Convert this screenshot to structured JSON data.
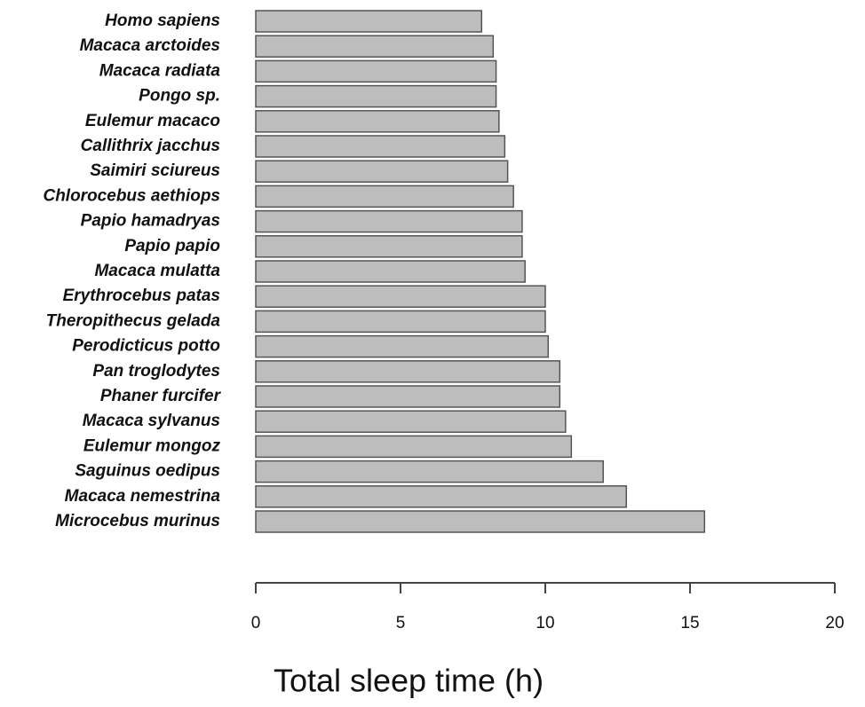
{
  "chart_data": {
    "type": "bar",
    "orientation": "horizontal",
    "x_label": "Total sleep time (h)",
    "categories": [
      "Homo sapiens",
      "Macaca arctoides",
      "Macaca radiata",
      "Pongo sp.",
      "Eulemur macaco",
      "Callithrix jacchus",
      "Saimiri sciureus",
      "Chlorocebus aethiops",
      "Papio hamadryas",
      "Papio papio",
      "Macaca mulatta",
      "Erythrocebus patas",
      "Theropithecus gelada",
      "Perodicticus potto",
      "Pan troglodytes",
      "Phaner furcifer",
      "Macaca sylvanus",
      "Eulemur mongoz",
      "Saguinus oedipus",
      "Macaca nemestrina",
      "Microcebus murinus"
    ],
    "values": [
      7.8,
      8.2,
      8.3,
      8.3,
      8.4,
      8.6,
      8.7,
      8.9,
      9.2,
      9.2,
      9.3,
      10.0,
      10.0,
      10.1,
      10.5,
      10.5,
      10.7,
      10.9,
      12.0,
      12.8,
      15.5
    ],
    "color": "#bdbdbd",
    "xlim": [
      0,
      20
    ],
    "xticks": [
      0,
      5,
      10,
      15,
      20
    ],
    "grid": false
  }
}
